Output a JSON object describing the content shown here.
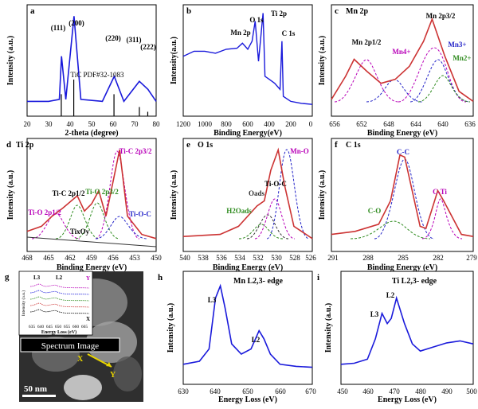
{
  "panels": {
    "a": {
      "letter": "a",
      "ylabel": "Intensity (a.u.)",
      "xlabel": "2-theta (degree)",
      "ref_label": "TiC PDF#32-1083",
      "peaks": [
        "(111)",
        "(200)",
        "(220)",
        "(311)",
        "(222)"
      ],
      "xticks": [
        "20",
        "30",
        "40",
        "50",
        "60",
        "70",
        "80"
      ]
    },
    "b": {
      "letter": "b",
      "ylabel": "Intensity(a.u.)",
      "xlabel": "Binding Energy(eV)",
      "labels": [
        "Mn 2p",
        "O 1s",
        "Ti 2p",
        "C 1s"
      ],
      "xticks": [
        "1200",
        "1000",
        "800",
        "600",
        "400",
        "200",
        "0"
      ]
    },
    "c": {
      "letter": "c",
      "title": "Mn 2p",
      "ylabel": "Intensity (a.u.)",
      "xlabel": "Binding Energy (eV)",
      "labels": [
        "Mn 2p1/2",
        "Mn 2p3/2",
        "Mn4+",
        "Mn3+",
        "Mn2+"
      ],
      "xticks": [
        "656",
        "652",
        "648",
        "644",
        "640",
        "636"
      ]
    },
    "d": {
      "letter": "d",
      "title": "Ti 2p",
      "ylabel": "Intensity (a.u.)",
      "xlabel": "Binding Energy (eV)",
      "labels": [
        "Ti-C 2p3/2",
        "Ti-C 2p1/2",
        "Ti-O 2p3/2",
        "Ti-O 2p1/2",
        "Ti-O-C",
        "TixOy"
      ],
      "xticks": [
        "468",
        "465",
        "462",
        "459",
        "456",
        "453",
        "450"
      ]
    },
    "e": {
      "letter": "e",
      "title": "O 1s",
      "ylabel": "Intensity (a.u.)",
      "xlabel": "Binding Energy (eV)",
      "labels": [
        "Mn-O",
        "Ti-O-C",
        "Oads",
        "H2Oads"
      ],
      "xticks": [
        "540",
        "538",
        "536",
        "534",
        "532",
        "530",
        "528",
        "526"
      ]
    },
    "f": {
      "letter": "f",
      "title": "C 1s",
      "ylabel": "Intensity (a.u.)",
      "xlabel": "Binding Energy (eV)",
      "labels": [
        "C-C",
        "C-Ti",
        "C-O"
      ],
      "xticks": [
        "291",
        "288",
        "285",
        "282",
        "279"
      ]
    },
    "g": {
      "letter": "g",
      "spectrum_label": "Spectrum Image",
      "scale_bar": "50 nm",
      "inset_top_labels": [
        "L3",
        "L2"
      ],
      "inset_corner": "Y",
      "inset_x_label": "X",
      "marker_x": "X",
      "marker_y": "Y",
      "inset_ylabel": "Intensity (a.u.)",
      "inset_xlabel": "Energy Loss (eV)",
      "inset_xticks": [
        "635",
        "640",
        "645",
        "650",
        "655",
        "660",
        "665"
      ]
    },
    "h": {
      "letter": "h",
      "title": "Mn L2,3- edge",
      "ylabel": "Intensity (a.u.)",
      "xlabel": "Energy Loss (eV)",
      "labels": [
        "L3",
        "L2"
      ],
      "xticks": [
        "630",
        "640",
        "650",
        "660",
        "670"
      ]
    },
    "i": {
      "letter": "i",
      "title": "Ti L2,3- edge",
      "ylabel": "Intensity (a.u.)",
      "xlabel": "Energy Loss (eV)",
      "labels": [
        "L3",
        "L2"
      ],
      "xticks": [
        "450",
        "460",
        "470",
        "480",
        "490",
        "500"
      ]
    }
  },
  "colors": {
    "data": "#1a1adb",
    "fit": "#cc3333",
    "magenta": "#b800b8",
    "green": "#2e8b1e",
    "blue": "#2424c8",
    "raw": "#a7b2c2"
  },
  "chart_data": [
    {
      "panel": "a",
      "type": "line",
      "xlim": [
        20,
        80
      ],
      "series": [
        {
          "x": [
            20,
            30,
            35,
            36.0,
            38,
            41.8,
            45,
            55,
            60.5,
            65,
            72.2,
            76.2,
            80
          ],
          "y": [
            0.1,
            0.1,
            0.12,
            0.55,
            0.12,
            0.95,
            0.12,
            0.1,
            0.35,
            0.1,
            0.3,
            0.22,
            0.1
          ]
        }
      ],
      "reference_lines": [
        {
          "x": 35.9,
          "h": 0.6
        },
        {
          "x": 41.7,
          "h": 1.0
        },
        {
          "x": 60.4,
          "h": 0.6
        },
        {
          "x": 72.2,
          "h": 0.25
        },
        {
          "x": 76.1,
          "h": 0.12
        }
      ]
    },
    {
      "panel": "b",
      "type": "line",
      "xlim": [
        1200,
        0
      ],
      "series": [
        {
          "x": [
            1200,
            1100,
            1000,
            900,
            800,
            700,
            650,
            600,
            560,
            531,
            500,
            458,
            440,
            400,
            350,
            300,
            282,
            270,
            200,
            100,
            0
          ],
          "y": [
            0.55,
            0.6,
            0.6,
            0.58,
            0.62,
            0.63,
            0.68,
            0.62,
            0.7,
            0.9,
            0.5,
            0.98,
            0.35,
            0.32,
            0.28,
            0.22,
            0.7,
            0.15,
            0.1,
            0.08,
            0.07
          ]
        }
      ]
    },
    {
      "panel": "c",
      "type": "line",
      "xlim": [
        656,
        636
      ],
      "series": [
        {
          "name": "fit",
          "x": [
            656,
            654,
            652.8,
            651,
            649,
            647,
            645,
            643,
            641.8,
            640,
            638,
            636
          ],
          "y": [
            0.12,
            0.35,
            0.52,
            0.4,
            0.28,
            0.32,
            0.45,
            0.7,
            0.92,
            0.55,
            0.2,
            0.1
          ]
        }
      ]
    },
    {
      "panel": "d",
      "type": "line",
      "xlim": [
        468,
        450
      ],
      "series": [
        {
          "name": "fit",
          "x": [
            468,
            466,
            464.5,
            463,
            461,
            460,
            459,
            458,
            457,
            455.1,
            454,
            452,
            450
          ],
          "y": [
            0.15,
            0.2,
            0.3,
            0.38,
            0.5,
            0.35,
            0.42,
            0.55,
            0.3,
            0.95,
            0.3,
            0.12,
            0.08
          ]
        }
      ]
    },
    {
      "panel": "e",
      "type": "line",
      "xlim": [
        540,
        526
      ],
      "series": [
        {
          "name": "fit",
          "x": [
            540,
            536,
            534,
            533,
            532,
            531.2,
            530.5,
            529.7,
            529,
            528,
            526
          ],
          "y": [
            0.1,
            0.12,
            0.2,
            0.3,
            0.4,
            0.45,
            0.75,
            0.95,
            0.6,
            0.2,
            0.08
          ]
        }
      ]
    },
    {
      "panel": "f",
      "type": "line",
      "xlim": [
        291,
        279
      ],
      "series": [
        {
          "name": "fit",
          "x": [
            291,
            289,
            287,
            286,
            285.2,
            284.8,
            283.5,
            283,
            282,
            281.5,
            280,
            279
          ],
          "y": [
            0.12,
            0.15,
            0.22,
            0.45,
            0.9,
            0.88,
            0.2,
            0.18,
            0.55,
            0.45,
            0.12,
            0.1
          ]
        }
      ]
    },
    {
      "panel": "h",
      "type": "line",
      "xlim": [
        630,
        670
      ],
      "series": [
        {
          "x": [
            630,
            635,
            638,
            640,
            641.5,
            643,
            645,
            648,
            651,
            653.5,
            655,
            657,
            660,
            665,
            670
          ],
          "y": [
            0.15,
            0.18,
            0.3,
            0.8,
            0.92,
            0.7,
            0.35,
            0.25,
            0.3,
            0.48,
            0.4,
            0.25,
            0.15,
            0.13,
            0.12
          ]
        }
      ]
    },
    {
      "panel": "i",
      "type": "line",
      "xlim": [
        450,
        500
      ],
      "series": [
        {
          "x": [
            450,
            455,
            460,
            463,
            465.5,
            467.5,
            469,
            471,
            474,
            477,
            480,
            485,
            490,
            495,
            500
          ],
          "y": [
            0.15,
            0.16,
            0.2,
            0.4,
            0.65,
            0.55,
            0.6,
            0.8,
            0.55,
            0.35,
            0.28,
            0.32,
            0.36,
            0.38,
            0.35
          ]
        }
      ]
    }
  ]
}
